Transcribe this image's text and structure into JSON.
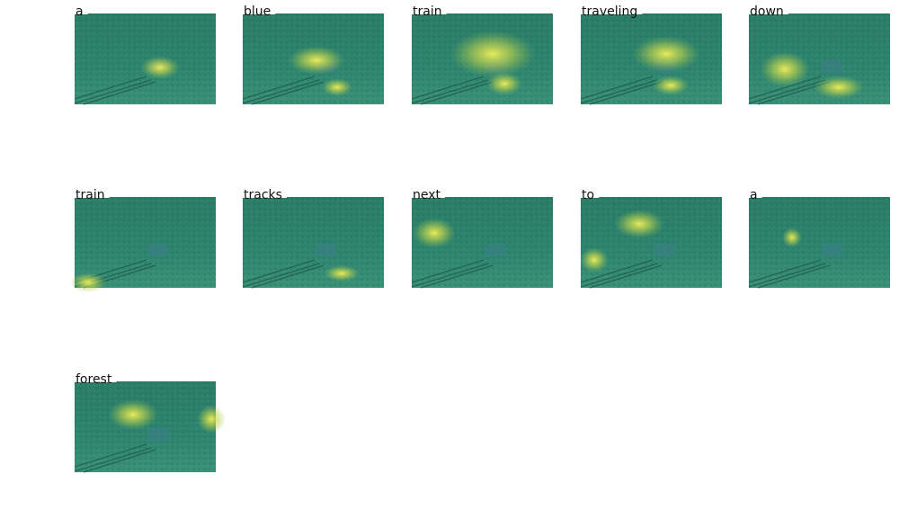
{
  "words": [
    "a",
    "blue",
    "train",
    "traveling",
    "down",
    "train",
    "tracks",
    "next",
    "to",
    "a",
    "forest"
  ]
}
